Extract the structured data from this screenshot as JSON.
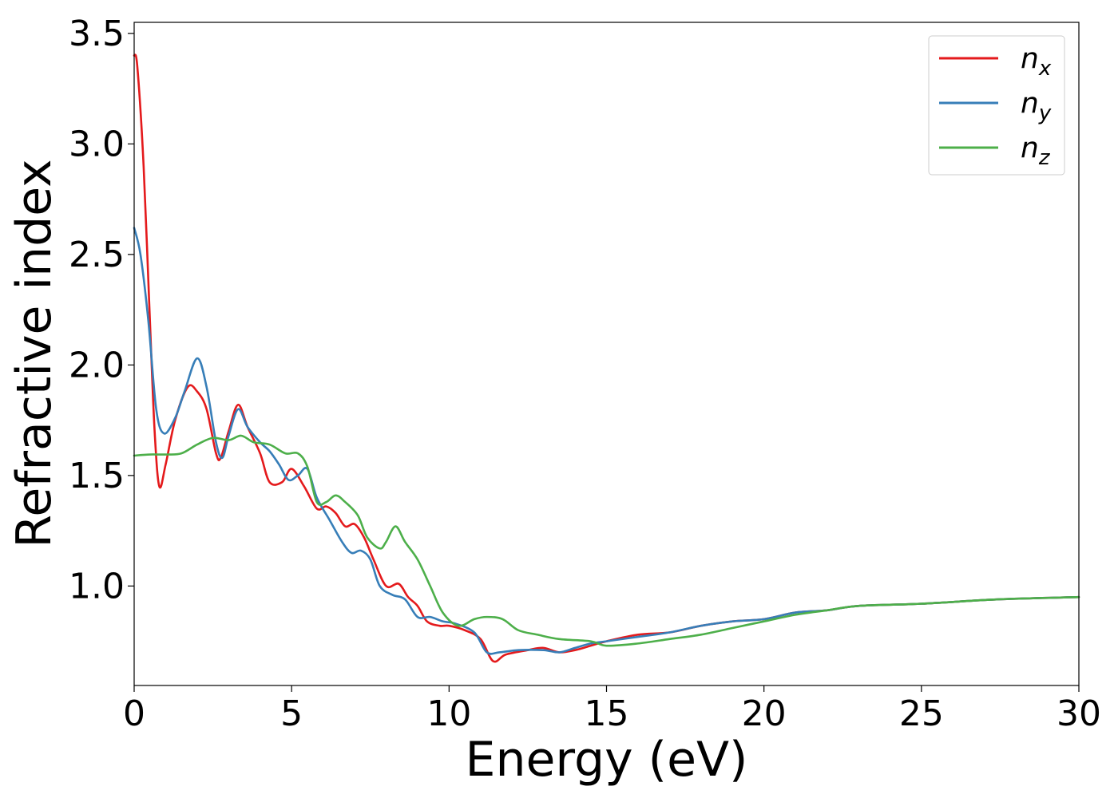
{
  "chart_data": {
    "type": "line",
    "title": "",
    "xlabel": "Energy (eV)",
    "ylabel": "Refractive index",
    "xlim": [
      0,
      30
    ],
    "ylim": [
      0.55,
      3.55
    ],
    "x_ticks": [
      0,
      5,
      10,
      15,
      20,
      25,
      30
    ],
    "y_ticks": [
      1.0,
      1.5,
      2.0,
      2.5,
      3.0,
      3.5
    ],
    "x_tick_labels": [
      "0",
      "5",
      "10",
      "15",
      "20",
      "25",
      "30"
    ],
    "y_tick_labels": [
      "1.0",
      "1.5",
      "2.0",
      "2.5",
      "3.0",
      "3.5"
    ],
    "grid": false,
    "legend_position": "top-right",
    "series": [
      {
        "name": "n",
        "subscript": "x",
        "color": "#e41a1c",
        "points": [
          [
            0,
            3.4
          ],
          [
            0.1,
            3.35
          ],
          [
            0.3,
            2.9
          ],
          [
            0.5,
            2.2
          ],
          [
            0.65,
            1.7
          ],
          [
            0.8,
            1.45
          ],
          [
            1.0,
            1.55
          ],
          [
            1.3,
            1.75
          ],
          [
            1.7,
            1.9
          ],
          [
            2.0,
            1.88
          ],
          [
            2.3,
            1.8
          ],
          [
            2.6,
            1.6
          ],
          [
            2.75,
            1.58
          ],
          [
            3.0,
            1.7
          ],
          [
            3.3,
            1.82
          ],
          [
            3.6,
            1.72
          ],
          [
            4.0,
            1.6
          ],
          [
            4.3,
            1.47
          ],
          [
            4.7,
            1.47
          ],
          [
            5.0,
            1.53
          ],
          [
            5.4,
            1.45
          ],
          [
            5.8,
            1.35
          ],
          [
            6.1,
            1.36
          ],
          [
            6.4,
            1.33
          ],
          [
            6.7,
            1.27
          ],
          [
            7.0,
            1.28
          ],
          [
            7.3,
            1.22
          ],
          [
            7.6,
            1.12
          ],
          [
            8.0,
            1.0
          ],
          [
            8.4,
            1.01
          ],
          [
            8.7,
            0.95
          ],
          [
            9.0,
            0.91
          ],
          [
            9.3,
            0.84
          ],
          [
            9.7,
            0.82
          ],
          [
            10.0,
            0.82
          ],
          [
            10.5,
            0.8
          ],
          [
            11.0,
            0.76
          ],
          [
            11.4,
            0.66
          ],
          [
            11.8,
            0.69
          ],
          [
            12.5,
            0.71
          ],
          [
            13.0,
            0.72
          ],
          [
            13.5,
            0.7
          ],
          [
            14.0,
            0.71
          ],
          [
            14.5,
            0.73
          ],
          [
            15.0,
            0.75
          ],
          [
            16.0,
            0.78
          ],
          [
            17.0,
            0.79
          ],
          [
            18.0,
            0.82
          ],
          [
            19.0,
            0.84
          ],
          [
            20.0,
            0.85
          ],
          [
            21.0,
            0.88
          ],
          [
            22.0,
            0.89
          ],
          [
            23.0,
            0.91
          ],
          [
            25.0,
            0.92
          ],
          [
            27.5,
            0.94
          ],
          [
            30.0,
            0.95
          ]
        ]
      },
      {
        "name": "n",
        "subscript": "y",
        "color": "#377eb8",
        "points": [
          [
            0,
            2.62
          ],
          [
            0.2,
            2.5
          ],
          [
            0.45,
            2.2
          ],
          [
            0.7,
            1.8
          ],
          [
            0.95,
            1.69
          ],
          [
            1.3,
            1.76
          ],
          [
            1.6,
            1.88
          ],
          [
            2.0,
            2.03
          ],
          [
            2.3,
            1.9
          ],
          [
            2.6,
            1.65
          ],
          [
            2.8,
            1.58
          ],
          [
            3.0,
            1.68
          ],
          [
            3.3,
            1.8
          ],
          [
            3.6,
            1.72
          ],
          [
            4.0,
            1.65
          ],
          [
            4.3,
            1.61
          ],
          [
            4.6,
            1.55
          ],
          [
            4.9,
            1.48
          ],
          [
            5.2,
            1.5
          ],
          [
            5.5,
            1.53
          ],
          [
            5.8,
            1.4
          ],
          [
            6.2,
            1.3
          ],
          [
            6.6,
            1.2
          ],
          [
            6.9,
            1.15
          ],
          [
            7.2,
            1.16
          ],
          [
            7.5,
            1.12
          ],
          [
            7.8,
            1.0
          ],
          [
            8.2,
            0.96
          ],
          [
            8.6,
            0.94
          ],
          [
            9.0,
            0.86
          ],
          [
            9.4,
            0.86
          ],
          [
            9.8,
            0.84
          ],
          [
            10.2,
            0.83
          ],
          [
            10.8,
            0.79
          ],
          [
            11.2,
            0.7
          ],
          [
            11.6,
            0.7
          ],
          [
            12.2,
            0.71
          ],
          [
            13.0,
            0.71
          ],
          [
            13.5,
            0.7
          ],
          [
            14.0,
            0.72
          ],
          [
            14.5,
            0.74
          ],
          [
            15.0,
            0.75
          ],
          [
            16.0,
            0.77
          ],
          [
            17.0,
            0.79
          ],
          [
            18.0,
            0.82
          ],
          [
            19.0,
            0.84
          ],
          [
            20.0,
            0.85
          ],
          [
            21.0,
            0.88
          ],
          [
            22.0,
            0.89
          ],
          [
            23.0,
            0.91
          ],
          [
            25.0,
            0.92
          ],
          [
            27.5,
            0.94
          ],
          [
            30.0,
            0.95
          ]
        ]
      },
      {
        "name": "n",
        "subscript": "z",
        "color": "#4daf4a",
        "points": [
          [
            0,
            1.59
          ],
          [
            0.5,
            1.595
          ],
          [
            1.0,
            1.595
          ],
          [
            1.5,
            1.6
          ],
          [
            2.0,
            1.64
          ],
          [
            2.5,
            1.67
          ],
          [
            3.0,
            1.66
          ],
          [
            3.4,
            1.68
          ],
          [
            3.8,
            1.65
          ],
          [
            4.3,
            1.64
          ],
          [
            4.8,
            1.6
          ],
          [
            5.2,
            1.6
          ],
          [
            5.5,
            1.54
          ],
          [
            5.8,
            1.38
          ],
          [
            6.1,
            1.38
          ],
          [
            6.4,
            1.41
          ],
          [
            6.7,
            1.38
          ],
          [
            7.1,
            1.32
          ],
          [
            7.4,
            1.22
          ],
          [
            7.8,
            1.17
          ],
          [
            8.0,
            1.2
          ],
          [
            8.3,
            1.27
          ],
          [
            8.6,
            1.2
          ],
          [
            9.0,
            1.12
          ],
          [
            9.4,
            1.0
          ],
          [
            9.8,
            0.88
          ],
          [
            10.3,
            0.82
          ],
          [
            10.8,
            0.85
          ],
          [
            11.2,
            0.86
          ],
          [
            11.7,
            0.85
          ],
          [
            12.2,
            0.8
          ],
          [
            12.8,
            0.78
          ],
          [
            13.5,
            0.76
          ],
          [
            14.5,
            0.75
          ],
          [
            15.0,
            0.73
          ],
          [
            16.0,
            0.74
          ],
          [
            17.0,
            0.76
          ],
          [
            18.0,
            0.78
          ],
          [
            19.0,
            0.81
          ],
          [
            20.0,
            0.84
          ],
          [
            21.0,
            0.87
          ],
          [
            22.0,
            0.89
          ],
          [
            23.0,
            0.91
          ],
          [
            25.0,
            0.92
          ],
          [
            27.5,
            0.94
          ],
          [
            30.0,
            0.95
          ]
        ]
      }
    ]
  }
}
